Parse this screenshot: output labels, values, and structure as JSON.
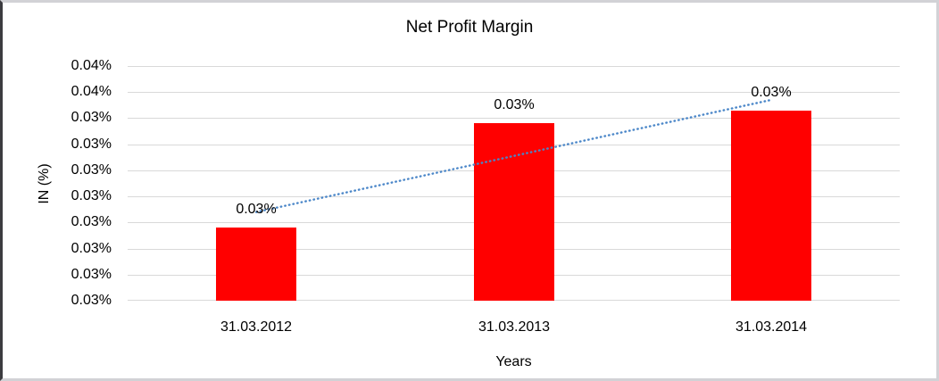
{
  "chart_data": {
    "type": "bar",
    "title": "Net Profit Margin",
    "xlabel": "Years",
    "ylabel": "IN (%)",
    "categories": [
      "31.03.2012",
      "31.03.2013",
      "31.03.2014"
    ],
    "series": [
      {
        "name": "Net Profit Margin",
        "values_pct": [
          0.0298,
          0.0338,
          0.0343
        ],
        "data_labels": [
          "0.03%",
          "0.03%",
          "0.03%"
        ],
        "color": "#ff0000"
      }
    ],
    "trendline": {
      "style": "dotted",
      "color": "#4a86c8",
      "start_pct": 0.0304,
      "end_pct": 0.0347
    },
    "y_axis": {
      "min_pct": 0.027,
      "max_pct": 0.036,
      "tick_step_pct": 0.001,
      "tick_labels_top_to_bottom": [
        "0.04%",
        "0.04%",
        "0.03%",
        "0.03%",
        "0.03%",
        "0.03%",
        "0.03%",
        "0.03%",
        "0.03%",
        "0.03%"
      ]
    },
    "grid": {
      "show": true,
      "color": "#d9d9d9"
    },
    "legend": {
      "show": false
    }
  }
}
